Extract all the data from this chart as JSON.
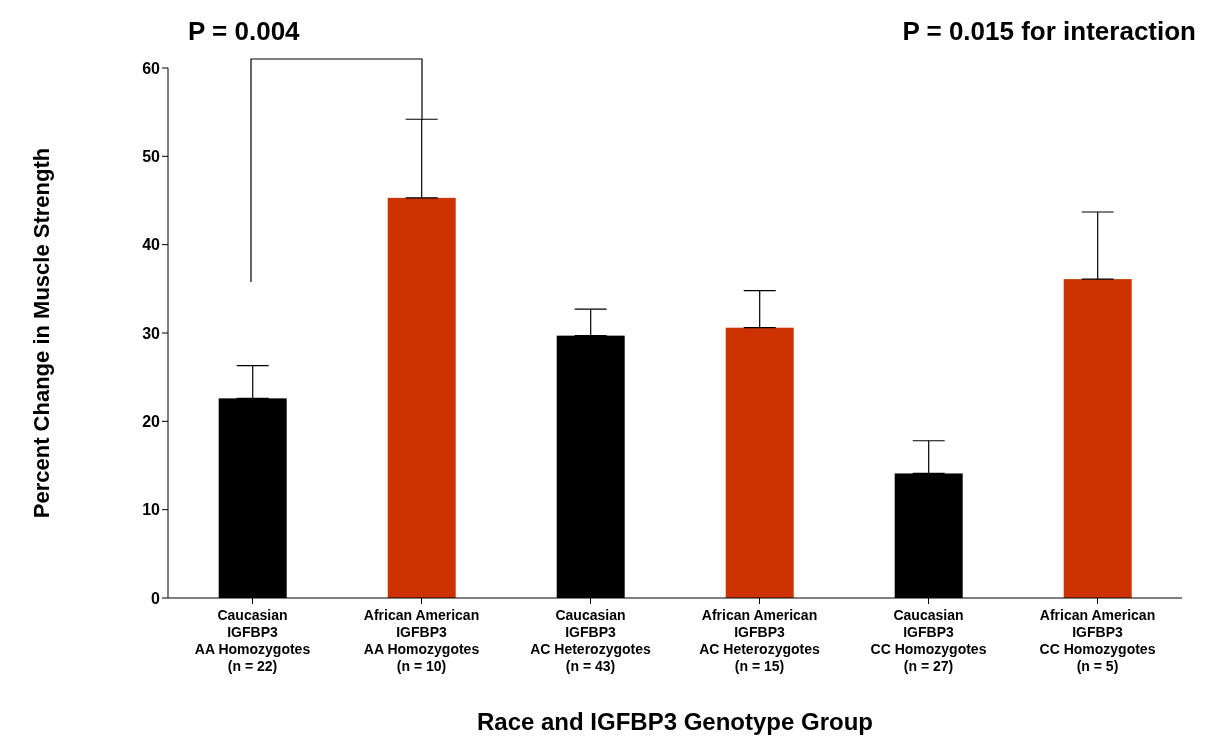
{
  "chart_data": {
    "type": "bar",
    "ylabel": "Percent Change in Muscle Strength",
    "xlabel": "Race and IGFBP3 Genotype Group",
    "categories": [
      "Caucasian\nIGFBP3\nAA Homozygotes\n(n = 22)",
      "African American\nIGFBP3\nAA Homozygotes\n(n = 10)",
      "Caucasian\nIGFBP3\nAC Heterozygotes\n(n = 43)",
      "African American\nIGFBP3\nAC Heterozygotes\n(n = 15)",
      "Caucasian\nIGFBP3\nCC Homozygotes\n(n = 27)",
      "African American\nIGFBP3\nCC Homozygotes\n(n = 5)"
    ],
    "values": [
      22.6,
      45.3,
      29.7,
      30.6,
      14.1,
      36.1
    ],
    "colors": [
      "#000000",
      "#cc3300",
      "#000000",
      "#cc3300",
      "#000000",
      "#cc3300"
    ],
    "errors": [
      [
        22.6,
        26.3
      ],
      [
        45.3,
        54.2
      ],
      [
        29.7,
        32.7
      ],
      [
        30.6,
        34.8
      ],
      [
        14.1,
        17.8
      ],
      [
        36.1,
        43.7
      ]
    ],
    "ylim": [
      0,
      60
    ],
    "yticks": [
      0,
      10,
      20,
      30,
      40,
      50,
      60
    ],
    "annotations": [
      "P = 0.004",
      "P = 0.015 for interaction"
    ]
  }
}
